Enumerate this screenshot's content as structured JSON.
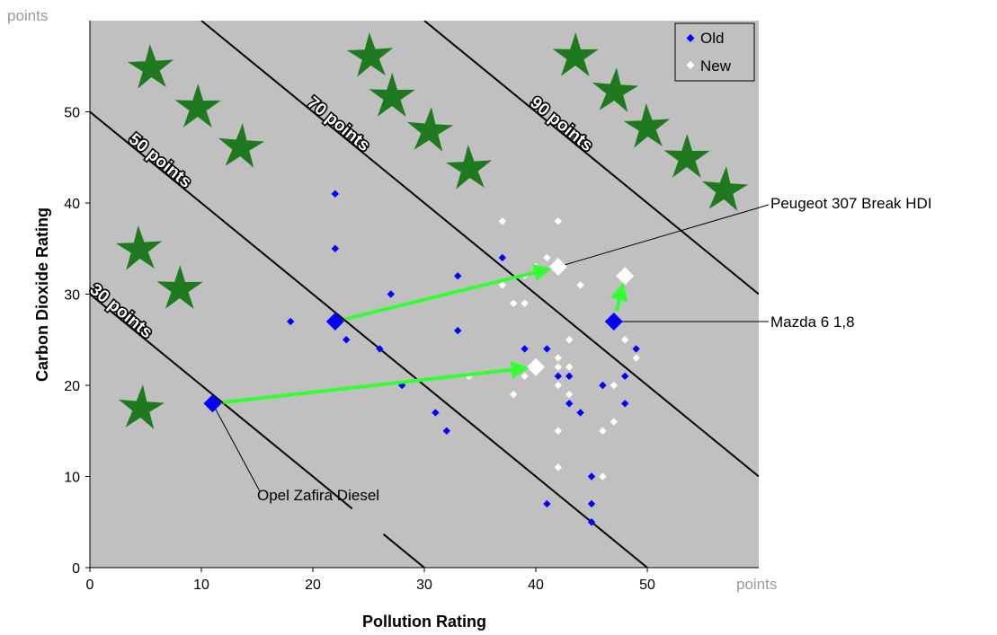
{
  "chart_data": {
    "type": "scatter",
    "title": "",
    "xlabel": "Pollution Rating",
    "ylabel": "Carbon Dioxide Rating",
    "x_unit": "points",
    "y_unit": "points",
    "xlim": [
      0,
      60
    ],
    "ylim": [
      0,
      60
    ],
    "x_ticks": [
      0,
      10,
      20,
      30,
      40,
      50
    ],
    "y_ticks": [
      0,
      10,
      20,
      30,
      40,
      50
    ],
    "grid": false,
    "background": "#c0c0c0",
    "legend_position": "top-right",
    "series": [
      {
        "name": "Old",
        "color": "#0000ff",
        "marker": "diamond",
        "points": [
          [
            22,
            41
          ],
          [
            22,
            35
          ],
          [
            18,
            27
          ],
          [
            23,
            25
          ],
          [
            26,
            24
          ],
          [
            27,
            30
          ],
          [
            28,
            20
          ],
          [
            31,
            17
          ],
          [
            32,
            15
          ],
          [
            33,
            32
          ],
          [
            33,
            26
          ],
          [
            37,
            34
          ],
          [
            39,
            32
          ],
          [
            39,
            24
          ],
          [
            41,
            24
          ],
          [
            41,
            7
          ],
          [
            42,
            21
          ],
          [
            43,
            21
          ],
          [
            43,
            18
          ],
          [
            44,
            17
          ],
          [
            45,
            10
          ],
          [
            45,
            7
          ],
          [
            45,
            5
          ],
          [
            46,
            20
          ],
          [
            48,
            21
          ],
          [
            48,
            18
          ],
          [
            49,
            24
          ]
        ],
        "highlighted": [
          [
            11,
            18
          ],
          [
            22,
            27
          ],
          [
            47,
            27
          ]
        ]
      },
      {
        "name": "New",
        "color": "#ffffff",
        "marker": "diamond",
        "points": [
          [
            37,
            38
          ],
          [
            37,
            31
          ],
          [
            38,
            29
          ],
          [
            38,
            19
          ],
          [
            39,
            32
          ],
          [
            39,
            29
          ],
          [
            39,
            21
          ],
          [
            40,
            33
          ],
          [
            41,
            34
          ],
          [
            42,
            38
          ],
          [
            42,
            23
          ],
          [
            42,
            22
          ],
          [
            42,
            20
          ],
          [
            42,
            15
          ],
          [
            42,
            11
          ],
          [
            43,
            25
          ],
          [
            43,
            22
          ],
          [
            43,
            19
          ],
          [
            44,
            31
          ],
          [
            46,
            15
          ],
          [
            46,
            10
          ],
          [
            47,
            16
          ],
          [
            47,
            20
          ],
          [
            48,
            25
          ],
          [
            49,
            23
          ],
          [
            34,
            21
          ]
        ],
        "highlighted": [
          [
            40,
            22
          ],
          [
            42,
            33
          ],
          [
            48,
            32
          ]
        ]
      }
    ],
    "iso_lines": [
      {
        "label": "30 points",
        "sum": 30
      },
      {
        "label": "50 points",
        "sum": 50
      },
      {
        "label": "70 points",
        "sum": 70
      },
      {
        "label": "90 points",
        "sum": 90
      }
    ],
    "arrows": [
      {
        "from": [
          11,
          18
        ],
        "to": [
          40,
          22
        ]
      },
      {
        "from": [
          22,
          27
        ],
        "to": [
          42,
          33
        ]
      },
      {
        "from": [
          47,
          27
        ],
        "to": [
          48,
          32
        ]
      }
    ],
    "annotations": [
      {
        "text": "Opel Zafira Diesel",
        "point": [
          11,
          18
        ]
      },
      {
        "text": "Peugeot 307 Break HDI",
        "point": [
          42,
          33
        ]
      },
      {
        "text": "Mazda 6 1,8",
        "point": [
          47,
          27
        ]
      }
    ],
    "decorations": {
      "star_color": "#1f7a1f",
      "star_count": 19
    }
  }
}
